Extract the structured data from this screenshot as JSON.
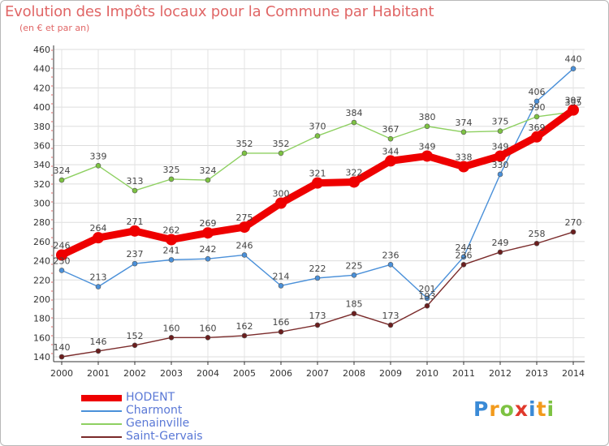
{
  "title": "Evolution des Impôts locaux pour la Commune par Habitant",
  "subtitle": "(en € et par an)",
  "logo": {
    "text": "Proxiti",
    "letters": [
      {
        "char": "P",
        "color": "#3a8ad6"
      },
      {
        "char": "r",
        "color": "#f29a1c"
      },
      {
        "char": "o",
        "color": "#7dc242"
      },
      {
        "char": "x",
        "color": "#e0392b"
      },
      {
        "char": "i",
        "color": "#3a8ad6"
      },
      {
        "char": "t",
        "color": "#f29a1c"
      },
      {
        "char": "i",
        "color": "#7dc242"
      }
    ]
  },
  "chart_data": {
    "type": "line",
    "x": [
      "2000",
      "2001",
      "2002",
      "2003",
      "2004",
      "2005",
      "2006",
      "2007",
      "2008",
      "2009",
      "2010",
      "2011",
      "2012",
      "2013",
      "2014"
    ],
    "ylim": [
      140,
      460
    ],
    "yticks": [
      140,
      160,
      180,
      200,
      220,
      240,
      260,
      280,
      300,
      320,
      340,
      360,
      380,
      400,
      420,
      440,
      460
    ],
    "grid": true,
    "legend_position": "bottom-left",
    "series": [
      {
        "name": "HODENT",
        "color": "#ee0000",
        "marker": "#ee0000",
        "thick": true,
        "values": [
          246,
          264,
          271,
          262,
          269,
          275,
          300,
          321,
          322,
          344,
          349,
          338,
          349,
          369,
          397
        ],
        "labels": [
          "246",
          "264",
          "271",
          "262",
          "269",
          "275",
          "300",
          "321",
          "322",
          "344",
          "349",
          "338",
          "349",
          "369",
          "397"
        ]
      },
      {
        "name": "Charmont",
        "color": "#4a90d9",
        "marker": "#4a90d9",
        "thick": false,
        "values": [
          230,
          213,
          237,
          241,
          242,
          246,
          214,
          222,
          225,
          236,
          201,
          244,
          330,
          406,
          440
        ],
        "labels": [
          "230",
          "213",
          "237",
          "241",
          "242",
          "246",
          "214",
          "222",
          "225",
          "236",
          "201",
          "244",
          "330",
          "406",
          "440"
        ]
      },
      {
        "name": "Genainville",
        "color": "#8ed061",
        "marker": "#7dc242",
        "thick": false,
        "values": [
          324,
          339,
          313,
          325,
          324,
          352,
          352,
          370,
          384,
          367,
          380,
          374,
          375,
          390,
          395
        ],
        "labels": [
          "324",
          "339",
          "313",
          "325",
          "324",
          "352",
          "352",
          "370",
          "384",
          "367",
          "380",
          "374",
          "375",
          "390",
          "395"
        ]
      },
      {
        "name": "Saint-Gervais",
        "color": "#7a2a2a",
        "marker": "#6b1e1e",
        "thick": false,
        "values": [
          140,
          146,
          152,
          160,
          160,
          162,
          166,
          173,
          185,
          173,
          193,
          236,
          249,
          258,
          270
        ],
        "labels": [
          "140",
          "146",
          "152",
          "160",
          "160",
          "162",
          "166",
          "173",
          "185",
          "173",
          "193",
          "236",
          "249",
          "258",
          "270"
        ]
      }
    ]
  }
}
